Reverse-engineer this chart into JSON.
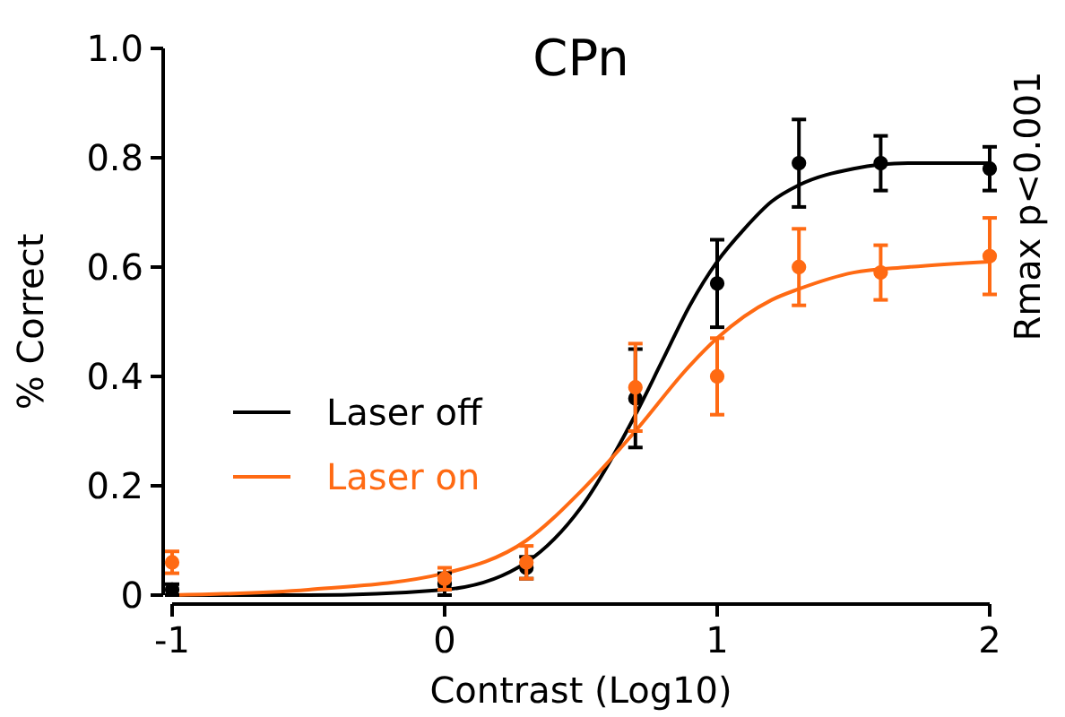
{
  "chart_data": {
    "type": "scatter",
    "title": "CPn",
    "xlabel": "Contrast (Log10)",
    "ylabel": "% Correct",
    "annotations": [
      "Rmax p<0.001"
    ],
    "xlim": [
      -1,
      2
    ],
    "xticks": [
      -1,
      0,
      1,
      2
    ],
    "ylim": [
      0,
      1
    ],
    "yticks": [
      0,
      0.2,
      0.4,
      0.6,
      0.8,
      {
        "value": 1,
        "label": "1.0"
      }
    ],
    "grid": false,
    "legend": "left",
    "marker": "circle",
    "series": [
      {
        "color": "#000000",
        "x": [
          -1,
          0,
          0.3,
          0.7,
          1,
          1.3,
          1.6,
          2
        ],
        "values": [
          0.01,
          0.02,
          0.05,
          0.36,
          0.57,
          0.79,
          0.79,
          0.78
        ],
        "errors": [
          0.01,
          0.02,
          0.02,
          0.09,
          0.08,
          0.08,
          0.05,
          0.04
        ]
      },
      {
        "color": "#ff6a13",
        "x": [
          -1,
          0,
          0.3,
          0.7,
          1,
          1.3,
          1.6,
          2
        ],
        "values": [
          0.06,
          0.03,
          0.06,
          0.38,
          0.4,
          0.6,
          0.59,
          0.62
        ],
        "errors": [
          0.02,
          0.02,
          0.03,
          0.08,
          0.07,
          0.07,
          0.05,
          0.07
        ]
      },
      {
        "type": "line",
        "name": "Laser off",
        "marker": "none",
        "color": "#000000",
        "x": [
          -1,
          -0.5,
          0,
          0.3,
          0.5,
          0.7,
          0.8,
          0.9,
          1,
          1.1,
          1.2,
          1.3,
          1.5,
          1.7,
          2
        ],
        "values": [
          0,
          0,
          0.01,
          0.06,
          0.16,
          0.33,
          0.43,
          0.53,
          0.61,
          0.67,
          0.72,
          0.75,
          0.78,
          0.79,
          0.79
        ]
      },
      {
        "type": "line",
        "name": "Laser on",
        "marker": "none",
        "color": "#ff6a13",
        "x": [
          -1,
          -0.5,
          0,
          0.3,
          0.5,
          0.7,
          0.9,
          1,
          1.2,
          1.3,
          1.5,
          1.7,
          2
        ],
        "values": [
          0,
          0.01,
          0.04,
          0.1,
          0.19,
          0.3,
          0.42,
          0.47,
          0.54,
          0.56,
          0.59,
          0.6,
          0.61
        ]
      }
    ]
  }
}
